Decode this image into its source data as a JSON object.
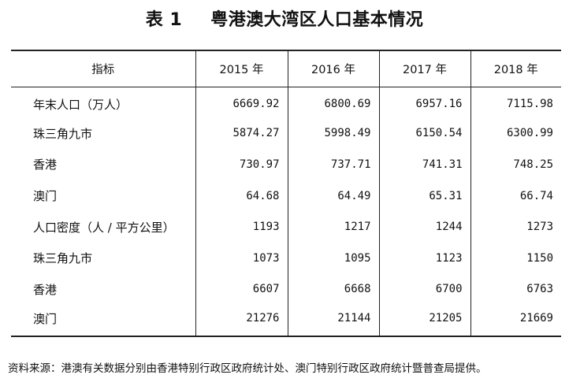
{
  "title": {
    "number": "表 1",
    "text": "粤港澳大湾区人口基本情况"
  },
  "table": {
    "headers": [
      "指标",
      "2015 年",
      "2016 年",
      "2017 年",
      "2018 年"
    ],
    "rows": [
      [
        "年末人口（万人）",
        "6669.92",
        "6800.69",
        "6957.16",
        "7115.98"
      ],
      [
        "珠三角九市",
        "5874.27",
        "5998.49",
        "6150.54",
        "6300.99"
      ],
      [
        "香港",
        "730.97",
        "737.71",
        "741.31",
        "748.25"
      ],
      [
        "澳门",
        "64.68",
        "64.49",
        "65.31",
        "66.74"
      ],
      [
        "人口密度（人 / 平方公里）",
        "1193",
        "1217",
        "1244",
        "1273"
      ],
      [
        "珠三角九市",
        "1073",
        "1095",
        "1123",
        "1150"
      ],
      [
        "香港",
        "6607",
        "6668",
        "6700",
        "6763"
      ],
      [
        "澳门",
        "21276",
        "21144",
        "21205",
        "21669"
      ]
    ]
  },
  "note": "资料来源：港澳有关数据分别由香港特别行政区政府统计处、澳门特别行政区政府统计暨普查局提供。"
}
